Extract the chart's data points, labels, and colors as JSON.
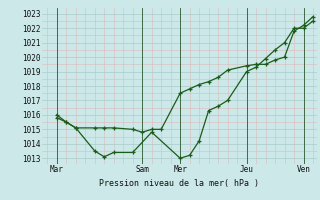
{
  "xlabel": "Pression niveau de la mer( hPa )",
  "bg_color": "#cce8e8",
  "grid_major_color": "#aacccc",
  "grid_minor_color": "#ddbaba",
  "line_color1": "#1a5c1a",
  "line_color2": "#1a5c1a",
  "yticks": [
    1013,
    1014,
    1015,
    1016,
    1017,
    1018,
    1019,
    1020,
    1021,
    1022,
    1023
  ],
  "ylim": [
    1012.6,
    1023.4
  ],
  "xlim": [
    -0.3,
    14.2
  ],
  "day_labels": [
    "Mar",
    "Sam",
    "Mer",
    "Jeu",
    "Ven"
  ],
  "day_positions": [
    0.5,
    5.0,
    7.0,
    10.5,
    13.5
  ],
  "vline_positions": [
    0.5,
    5.0,
    7.0,
    10.5,
    13.5
  ],
  "series1_x": [
    0.5,
    1.0,
    1.5,
    2.5,
    3.0,
    3.5,
    4.5,
    5.5,
    7.0,
    7.5,
    8.0,
    8.5,
    9.0,
    9.5,
    10.5,
    11.0,
    11.5,
    12.0,
    12.5,
    13.0,
    13.5,
    14.0
  ],
  "series1_y": [
    1015.8,
    1015.5,
    1015.1,
    1013.5,
    1013.1,
    1013.4,
    1013.4,
    1014.8,
    1013.0,
    1013.2,
    1014.2,
    1016.3,
    1016.6,
    1017.0,
    1019.0,
    1019.3,
    1019.9,
    1020.5,
    1021.0,
    1022.0,
    1022.0,
    1022.5
  ],
  "series2_x": [
    0.5,
    1.0,
    1.5,
    2.5,
    3.0,
    3.5,
    4.5,
    5.0,
    5.5,
    6.0,
    7.0,
    7.5,
    8.0,
    8.5,
    9.0,
    9.5,
    10.5,
    11.0,
    11.5,
    12.0,
    12.5,
    13.0,
    13.5,
    14.0
  ],
  "series2_y": [
    1016.0,
    1015.5,
    1015.1,
    1015.1,
    1015.1,
    1015.1,
    1015.0,
    1014.8,
    1015.0,
    1015.0,
    1017.5,
    1017.8,
    1018.1,
    1018.3,
    1018.6,
    1019.1,
    1019.4,
    1019.5,
    1019.5,
    1019.8,
    1020.0,
    1021.8,
    1022.2,
    1022.8
  ]
}
